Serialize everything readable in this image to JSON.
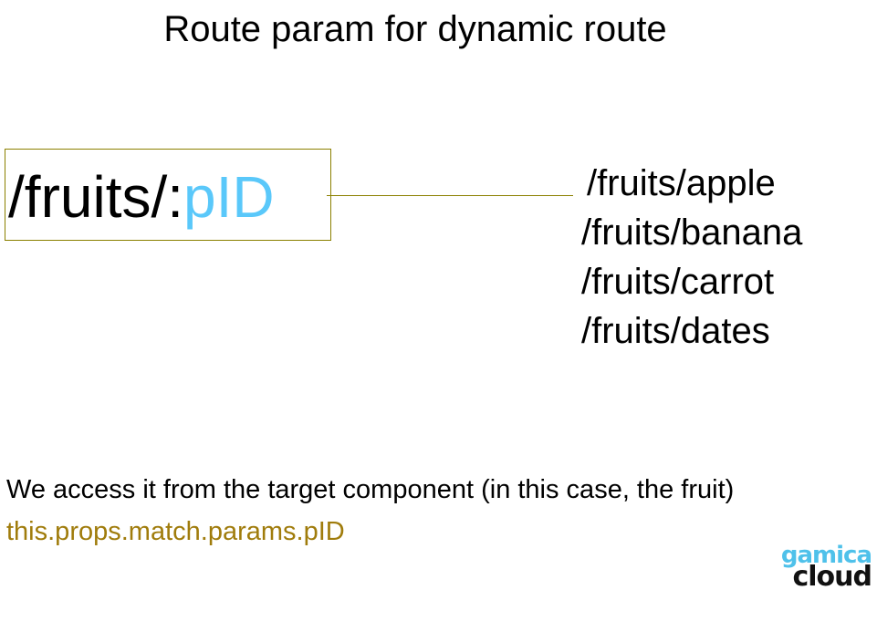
{
  "title": "Route param for dynamic route",
  "route": {
    "prefix": "/fruits/:",
    "param": "pID"
  },
  "examples": [
    "/fruits/apple",
    "/fruits/banana",
    "/fruits/carrot",
    "/fruits/dates"
  ],
  "description": "We access it from the target component (in this case, the fruit)",
  "code": "this.props.match.params.pID",
  "logo": {
    "line1": "gamica",
    "line2": "cloud"
  },
  "colors": {
    "param": "#5ac8fa",
    "box_border": "#8b8000",
    "code": "#a07c0c",
    "logo_top": "#4fc1ea",
    "logo_bottom": "#111111"
  }
}
